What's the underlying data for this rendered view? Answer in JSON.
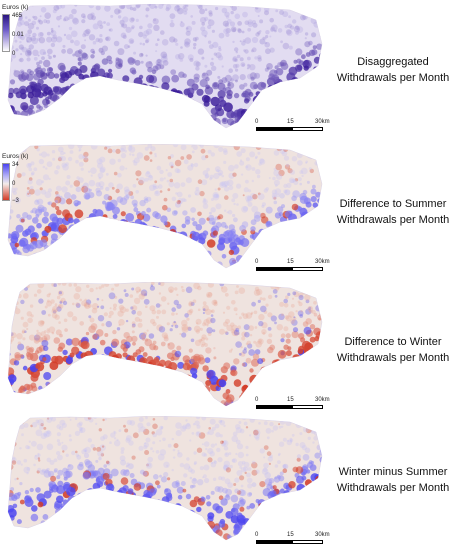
{
  "panels": [
    {
      "caption_line1": "Disaggregated",
      "caption_line2": "Withdrawals per Month",
      "legend": {
        "title": "Euros (k)",
        "ticks": [
          "465",
          "0.01",
          "0"
        ]
      },
      "palette": "purple",
      "colors": {
        "high": "#3b1d9a",
        "low": "#f2eef8"
      }
    },
    {
      "caption_line1": "Difference to Summer",
      "caption_line2": "Withdrawals per Month",
      "legend": {
        "title": "Euros (k)",
        "ticks": [
          "34",
          "0",
          "−3"
        ]
      },
      "palette": "diverging-blue",
      "colors": {
        "high": "#4a43f0",
        "mid": "#f3ecea",
        "low": "#d23a26"
      }
    },
    {
      "caption_line1": "Difference to Winter",
      "caption_line2": "Withdrawals per Month",
      "legend": null,
      "palette": "diverging-red",
      "colors": {
        "high": "#4a43f0",
        "mid": "#f3ecea",
        "low": "#d23a26"
      }
    },
    {
      "caption_line1": "Winter minus Summer",
      "caption_line2": "Withdrawals per Month",
      "legend": null,
      "palette": "diverging-blue-strong",
      "colors": {
        "high": "#4a43f0",
        "mid": "#f3ecea",
        "low": "#d23a26"
      }
    }
  ],
  "scalebar": {
    "ticks": [
      "0",
      "15",
      "30km"
    ]
  }
}
